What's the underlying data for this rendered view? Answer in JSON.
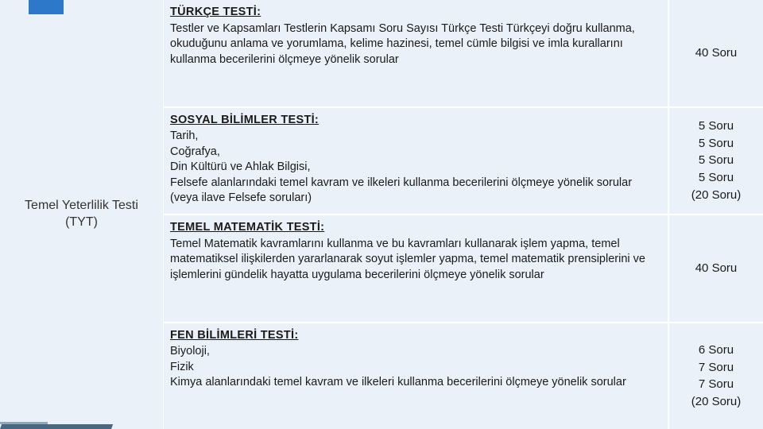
{
  "side_title": "Temel Yeterlilik Testi (TYT)",
  "rows": [
    {
      "heading": "TÜRKÇE TESTİ:",
      "body": "Testler ve Kapsamları Testlerin Kapsamı Soru Sayısı Türkçe Testi Türkçeyi doğru kullanma, okuduğunu anlama ve yorumlama, kelime hazinesi, temel cümle bilgisi ve imla kurallarını kullanma becerilerini ölçmeye yönelik sorular",
      "counts": [
        "40 Soru"
      ]
    },
    {
      "heading": "SOSYAL BİLİMLER TESTİ:",
      "body": "Tarih,\nCoğrafya,\nDin Kültürü ve Ahlak Bilgisi,\nFelsefe alanlarındaki temel kavram ve ilkeleri kullanma becerilerini ölçmeye yönelik sorular (veya ilave Felsefe soruları)",
      "counts": [
        "5 Soru",
        "5 Soru",
        "5 Soru",
        "5 Soru",
        "(20 Soru)"
      ]
    },
    {
      "heading": "TEMEL MATEMATİK TESTİ:",
      "body": " Temel Matematik kavramlarını kullanma ve bu kavramları kullanarak işlem yapma, temel matematiksel ilişkilerden yararlanarak soyut işlemler yapma, temel matematik prensiplerini ve işlemlerini gündelik hayatta uygulama becerilerini ölçmeye yönelik sorular",
      "counts": [
        "40 Soru"
      ]
    },
    {
      "heading": "FEN BİLİMLERİ TESTİ:",
      "body": "Biyoloji,\nFizik\nKimya alanlarındaki temel kavram ve ilkeleri kullanma becerilerini ölçmeye yönelik sorular",
      "counts": [
        "6 Soru",
        "7 Soru",
        "7 Soru",
        "(20 Soru)"
      ]
    }
  ]
}
